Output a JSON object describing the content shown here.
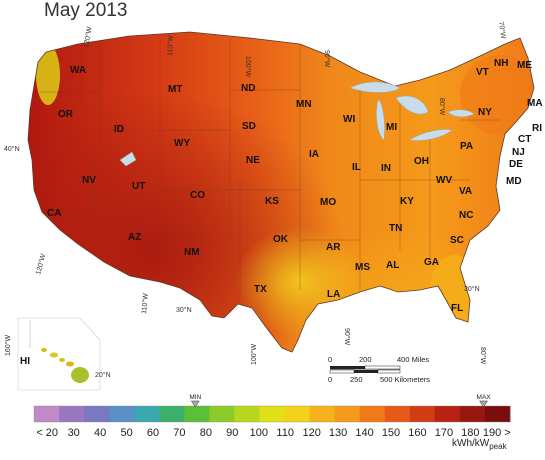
{
  "title": "May 2013",
  "states": [
    "WA",
    "OR",
    "ID",
    "MT",
    "WY",
    "ND",
    "SD",
    "NE",
    "MN",
    "WI",
    "MI",
    "IA",
    "IL",
    "IN",
    "OH",
    "PA",
    "NY",
    "VT",
    "NH",
    "ME",
    "MA",
    "RI",
    "CT",
    "NJ",
    "DE",
    "MD",
    "WV",
    "VA",
    "KY",
    "TN",
    "NC",
    "SC",
    "GA",
    "AL",
    "MS",
    "AR",
    "LA",
    "MO",
    "KS",
    "OK",
    "TX",
    "NM",
    "AZ",
    "UT",
    "NV",
    "CA",
    "CO",
    "FL",
    "HI"
  ],
  "graticule": {
    "lon": [
      "120°W",
      "110°W",
      "100°W",
      "90°W",
      "80°W",
      "70°W",
      "160°W",
      "120°W",
      "110°W",
      "100°W",
      "90°W",
      "80°W"
    ],
    "lat": [
      "40°N",
      "30°N",
      "30°N",
      "20°N"
    ]
  },
  "scalebar": {
    "miles_ticks": [
      "0",
      "200",
      "400 Miles"
    ],
    "km_ticks": [
      "0",
      "250",
      "500 Kilometers"
    ]
  },
  "colorbar": {
    "labels": [
      "< 20",
      "30",
      "40",
      "50",
      "60",
      "70",
      "80",
      "90",
      "100",
      "110",
      "120",
      "130",
      "140",
      "150",
      "160",
      "170",
      "180",
      "190 >"
    ],
    "unit_main": "kWh/kW",
    "unit_sub": "peak",
    "min_label": "MIN",
    "max_label": "MAX",
    "min_value": 76,
    "max_value": 185,
    "colors": [
      "#c08ac8",
      "#9a78c0",
      "#7a78c0",
      "#5a90c8",
      "#3aa8b0",
      "#3cb06a",
      "#5cbf3a",
      "#8ccc2a",
      "#b8d820",
      "#e0e018",
      "#f4d21a",
      "#f6b21a",
      "#f59a1a",
      "#f07a18",
      "#e45a16",
      "#d23c14",
      "#b82212",
      "#961610",
      "#7a0e0c"
    ]
  }
}
